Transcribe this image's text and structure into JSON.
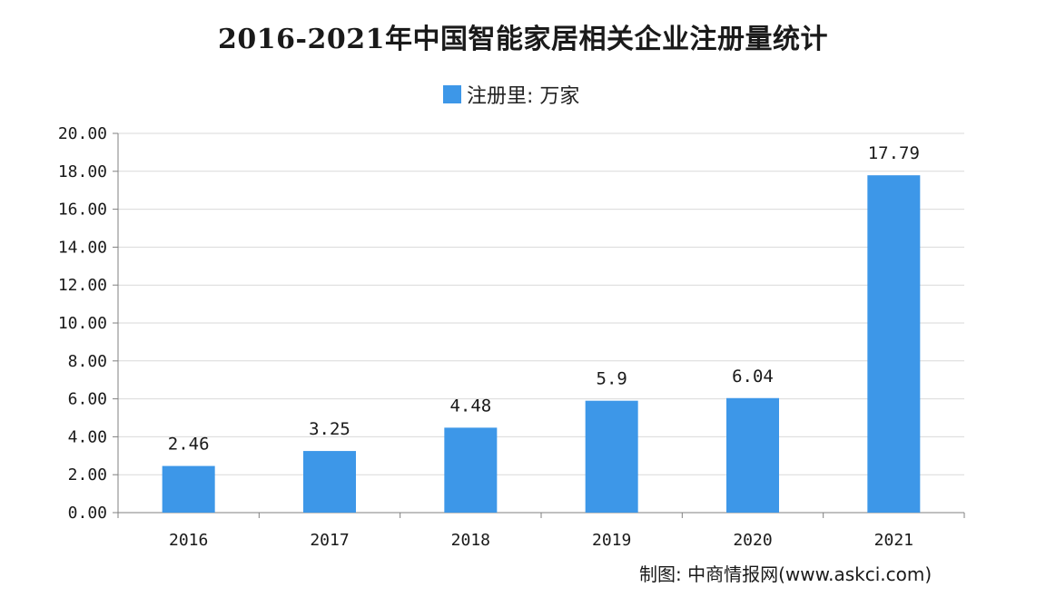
{
  "chart_data": {
    "type": "bar",
    "title": "2016-2021年中国智能家居相关企业注册量统计",
    "xlabel": "",
    "ylabel": "",
    "categories": [
      "2016",
      "2017",
      "2018",
      "2019",
      "2020",
      "2021"
    ],
    "series": [
      {
        "name": "注册里: 万家",
        "values": [
          2.46,
          3.25,
          4.48,
          5.9,
          6.04,
          17.79
        ],
        "labels": [
          "2.46",
          "3.25",
          "4.48",
          "5.9",
          "6.04",
          "17.79"
        ],
        "color": "#3d97e8"
      }
    ],
    "ylim": [
      0,
      20
    ],
    "yticks": [
      "0.00",
      "2.00",
      "4.00",
      "6.00",
      "8.00",
      "10.00",
      "12.00",
      "14.00",
      "16.00",
      "18.00",
      "20.00"
    ],
    "grid": true,
    "legend_position": "top-center"
  },
  "source": "制图: 中商情报网(www.askci.com)",
  "colors": {
    "bar": "#3d97e8",
    "grid": "#d9d9d9",
    "axis": "#808080"
  }
}
